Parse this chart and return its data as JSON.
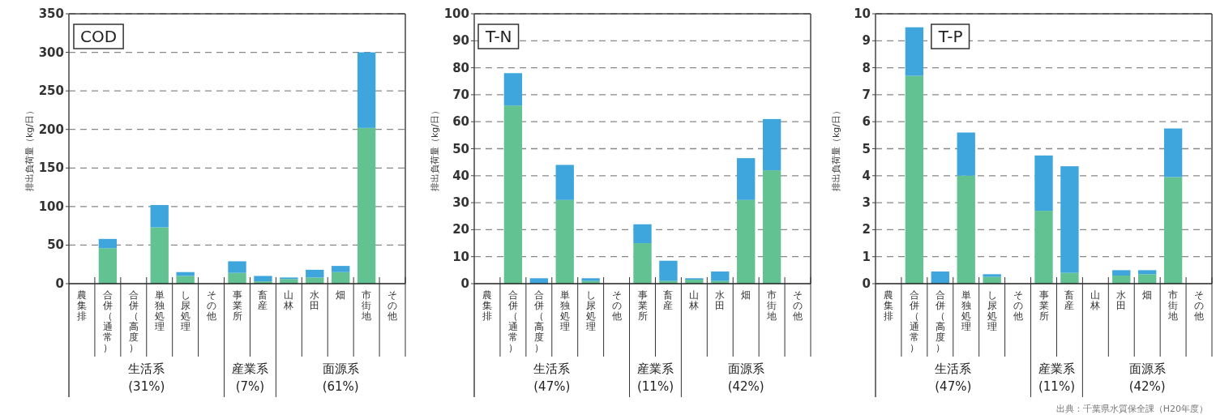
{
  "chart_data": [
    {
      "type": "bar",
      "stacked": true,
      "title": "COD",
      "ylabel": "排出負荷量（kg/日）",
      "grid": "y",
      "categories": [
        "農集排",
        "合併（通常）",
        "合併（高度）",
        "単独処理",
        "し尿処理",
        "その他",
        "事業所",
        "畜産",
        "山林",
        "水田",
        "畑",
        "市街地",
        "その他"
      ],
      "series": [
        {
          "color": "#63c291",
          "values": [
            0,
            46,
            0,
            73,
            10,
            0,
            14,
            3,
            6,
            8,
            15,
            202,
            0
          ]
        },
        {
          "color": "#3ea6dc",
          "values": [
            0,
            12,
            null,
            29,
            5,
            0,
            15,
            7,
            2,
            10,
            8,
            98,
            null
          ]
        }
      ],
      "ylim": [
        0,
        350
      ],
      "yticks": [
        0,
        50,
        100,
        150,
        200,
        250,
        300,
        350
      ],
      "annotations": [
        "生活系\n(31%)",
        "産業系\n(7%)",
        "面源系\n(61%)"
      ]
    },
    {
      "type": "bar",
      "stacked": true,
      "title": "T-N",
      "ylabel": "排出負荷量（kg/日）",
      "grid": "y",
      "categories": [
        "農集排",
        "合併（通常）",
        "合併（高度）",
        "単独処理",
        "し尿処理",
        "その他",
        "事業所",
        "畜産",
        "山林",
        "水田",
        "畑",
        "市街地",
        "その他"
      ],
      "series": [
        {
          "color": "#63c291",
          "values": [
            0,
            66,
            0,
            31,
            1,
            0,
            15,
            1,
            1.5,
            1,
            31,
            42,
            0
          ]
        },
        {
          "color": "#3ea6dc",
          "values": [
            0,
            12,
            2,
            13,
            1,
            0,
            7,
            7.5,
            0.5,
            3.5,
            15.5,
            19,
            0
          ]
        }
      ],
      "ylim": [
        0,
        100
      ],
      "yticks": [
        0,
        10,
        20,
        30,
        40,
        50,
        60,
        70,
        80,
        90,
        100
      ],
      "annotations": [
        "生活系\n(47%)",
        "産業系\n(11%)",
        "面源系\n(42%)"
      ]
    },
    {
      "type": "bar",
      "stacked": true,
      "title": "T-P",
      "ylabel": "排出負荷量（kg/日）",
      "grid": "y",
      "categories": [
        "農集排",
        "合併（通常）",
        "合併（高度）",
        "単独処理",
        "し尿処理",
        "その他",
        "事業所",
        "畜産",
        "山林",
        "水田",
        "畑",
        "市街地",
        "その他"
      ],
      "series": [
        {
          "color": "#63c291",
          "values": [
            0,
            7.7,
            0,
            4.0,
            0.25,
            0,
            2.7,
            0.4,
            0,
            0.3,
            0.35,
            3.95,
            0
          ]
        },
        {
          "color": "#3ea6dc",
          "values": [
            0,
            1.8,
            0.45,
            1.6,
            0.1,
            0,
            2.05,
            3.95,
            0,
            0.2,
            0.15,
            1.8,
            0
          ]
        }
      ],
      "ylim": [
        0,
        10
      ],
      "yticks": [
        0,
        1,
        2,
        3,
        4,
        5,
        6,
        7,
        8,
        9,
        10
      ],
      "annotations": [
        "生活系\n(47%)",
        "産業系\n(11%)",
        "面源系\n(42%)",
        "出典：千葉県水質保全課（H20年度）"
      ]
    }
  ]
}
